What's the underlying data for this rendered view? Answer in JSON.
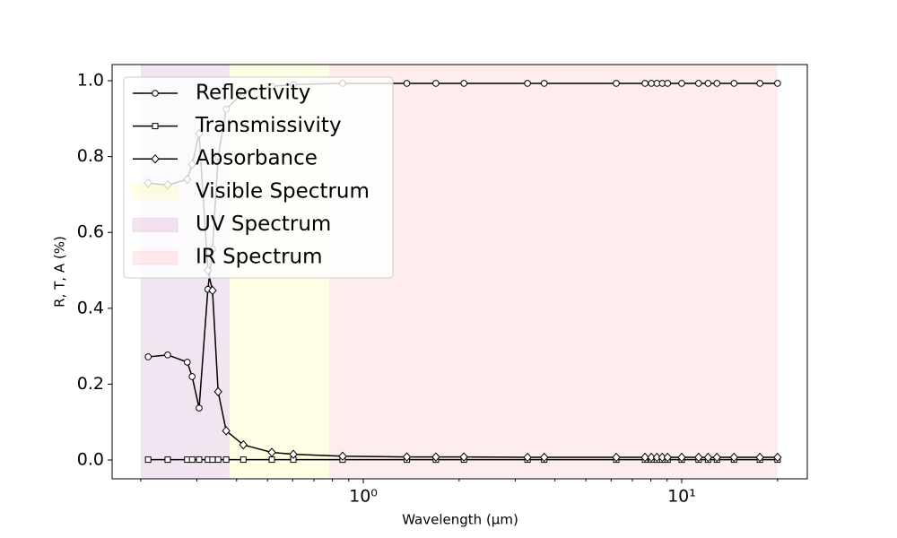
{
  "chart_data": {
    "type": "line",
    "x_label": "Wavelength (μm)",
    "y_label": "R, T, A (%)",
    "x_scale": "log",
    "xlim": [
      0.1626,
      24.8
    ],
    "ylim": [
      -0.0496,
      1.0426
    ],
    "xticks": [
      {
        "value": 1,
        "label": "10⁰"
      },
      {
        "value": 10,
        "label": "10¹"
      }
    ],
    "xminorticks": [
      0.2,
      0.3,
      0.4,
      0.5,
      0.6,
      0.7,
      0.8,
      0.9,
      2,
      3,
      4,
      5,
      6,
      7,
      8,
      9,
      20
    ],
    "yticks": [
      {
        "value": 0,
        "label": "0.0"
      },
      0.2,
      0.4,
      0.6,
      0.8,
      {
        "value": 1,
        "label": "1.0"
      }
    ],
    "legend": "upper left",
    "x": [
      0.211,
      0.243,
      0.28,
      0.29,
      0.305,
      0.325,
      0.336,
      0.35,
      0.371,
      0.42,
      0.516,
      0.603,
      0.861,
      1.37,
      1.69,
      2.07,
      3.28,
      3.7,
      6.23,
      7.67,
      8.03,
      8.36,
      8.69,
      9.03,
      10,
      11.3,
      12.1,
      12.9,
      14.6,
      17.6,
      20
    ],
    "series": [
      {
        "name": "Reflectivity",
        "color": "#000000",
        "marker": "circle",
        "values": [
          0.272,
          0.277,
          0.258,
          0.22,
          0.137,
          0.45,
          0.556,
          0.8,
          0.925,
          0.97,
          0.985,
          0.99,
          0.993,
          0.993,
          0.993,
          0.993,
          0.993,
          0.993,
          0.993,
          0.993,
          0.993,
          0.993,
          0.993,
          0.993,
          0.993,
          0.993,
          0.993,
          0.993,
          0.993,
          0.993,
          0.993
        ]
      },
      {
        "name": "Transmissivity",
        "color": "#000000",
        "marker": "square",
        "values": [
          0.001,
          0.001,
          0.001,
          0.001,
          0.001,
          0.001,
          0.001,
          0.001,
          0.001,
          0.001,
          0.001,
          0.001,
          0.001,
          0.001,
          0.001,
          0.001,
          0.001,
          0.001,
          0.001,
          0.001,
          0.001,
          0.001,
          0.001,
          0.001,
          0.001,
          0.001,
          0.001,
          0.001,
          0.001,
          0.001,
          0.001
        ]
      },
      {
        "name": "Absorbance",
        "color": "#000000",
        "marker": "diamond",
        "values": [
          0.73,
          0.725,
          0.74,
          0.78,
          0.86,
          0.5,
          0.447,
          0.18,
          0.077,
          0.04,
          0.02,
          0.015,
          0.01,
          0.008,
          0.008,
          0.008,
          0.007,
          0.007,
          0.007,
          0.007,
          0.007,
          0.007,
          0.007,
          0.007,
          0.007,
          0.007,
          0.007,
          0.007,
          0.007,
          0.007,
          0.007
        ]
      }
    ],
    "spans": [
      {
        "name": "Visible Spectrum",
        "color": "#ffff00",
        "alpha": 0.1,
        "x": [
          0.38,
          0.78
        ]
      },
      {
        "name": "UV Spectrum",
        "color": "#800080",
        "alpha": 0.1,
        "x": [
          0.2,
          0.38
        ]
      },
      {
        "name": "IR Spectrum",
        "color": "#ff0000",
        "alpha": 0.07,
        "x": [
          0.78,
          20
        ]
      }
    ]
  }
}
